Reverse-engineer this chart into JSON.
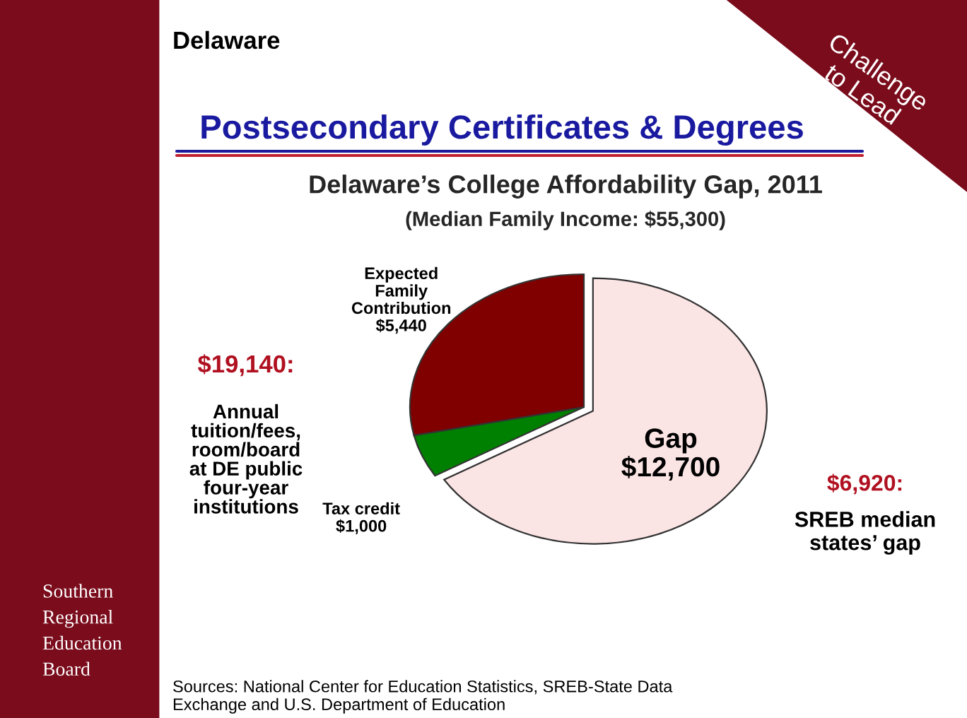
{
  "chart_data": {
    "type": "pie",
    "title": "Delaware’s College Affordability Gap, 2011",
    "subtitle": "(Median Family Income: $55,300)",
    "categories": [
      "Gap",
      "Tax credit",
      "Expected Family Contribution"
    ],
    "values": [
      12700,
      1000,
      5440
    ],
    "value_labels": [
      "$12,700",
      "$1,000",
      "$5,440"
    ],
    "colors": [
      "#fbe4e4",
      "#008000",
      "#800000"
    ],
    "annotations": [
      "Delaware",
      "Postsecondary Certificates & Degrees",
      "$19,140:",
      "Annual\ntuition/fees,\nroom/board\nat DE public\nfour-year\ninstitutions",
      "$6,920:",
      "SREB median\nstates’ gap",
      "Challenge\nto Lead",
      "Southern\nRegional\nEducation\nBoard",
      "Sources: National Center for Education Statistics, SREB-State Data\nExchange and U.S. Department of Education"
    ]
  }
}
